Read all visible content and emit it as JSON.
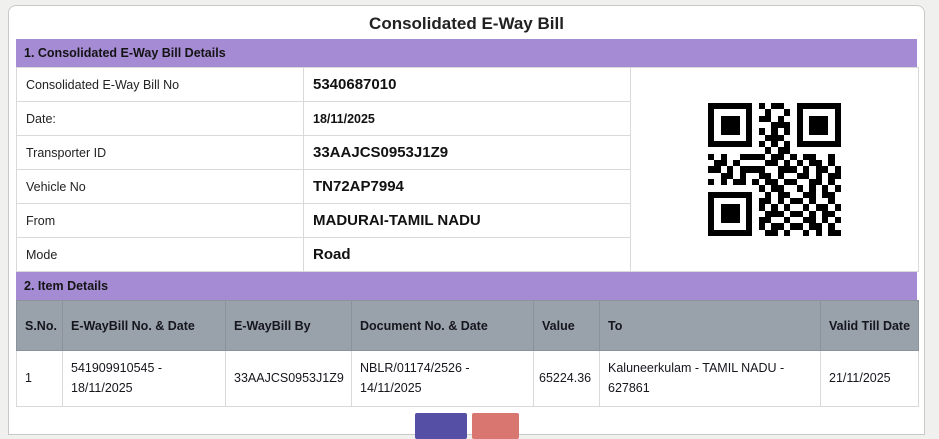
{
  "page": {
    "title": "Consolidated E-Way Bill"
  },
  "sections": {
    "details": {
      "heading": "1. Consolidated E-Way Bill Details",
      "rows": [
        {
          "label": "Consolidated E-Way Bill No",
          "value": "5340687010"
        },
        {
          "label": "Date:",
          "value": "18/11/2025"
        },
        {
          "label": "Transporter ID",
          "value": "33AAJCS0953J1Z9"
        },
        {
          "label": "Vehicle No",
          "value": "TN72AP7994"
        },
        {
          "label": "From",
          "value": "MADURAI-TAMIL NADU"
        },
        {
          "label": "Mode",
          "value": "Road"
        }
      ],
      "qr_matrix": [
        "111111101011001111111",
        "100000100100101000001",
        "101110101101001011101",
        "101110100011101011101",
        "101110101010101011101",
        "100000100111001000001",
        "111111101010101111111",
        "000000000101100000000",
        "101001111011010110010",
        "011010000110101011010",
        "110101111001110101101",
        "001101001101001101011",
        "101011010110110011010",
        "000000001011001010101",
        "111111100101100110110",
        "100000101101011010010",
        "101110101010100101101",
        "101110100111011010110",
        "101110101100100110101",
        "100000101011011011010",
        "111111100110100101011"
      ]
    },
    "items": {
      "heading": "2. Item Details",
      "columns": [
        "S.No.",
        "E-WayBill No. & Date",
        "E-WayBill By",
        "Document No. & Date",
        "Value",
        "To",
        "Valid Till Date"
      ],
      "rows": [
        [
          "1",
          "541909910545 - 18/11/2025",
          "33AAJCS0953J1Z9",
          "NBLR/01174/2526 - 14/11/2025",
          "65224.36",
          "Kaluneerkulam - TAMIL NADU - 627861",
          "21/11/2025"
        ]
      ]
    }
  },
  "footer_buttons": [
    {
      "name": "primary",
      "color": "#5550a5"
    },
    {
      "name": "secondary",
      "color": "#d8766f"
    }
  ],
  "colors": {
    "section_heading_bg": "#a48bd4",
    "table_header_bg": "#99a1ab",
    "page_bg": "#f0f0ef"
  }
}
